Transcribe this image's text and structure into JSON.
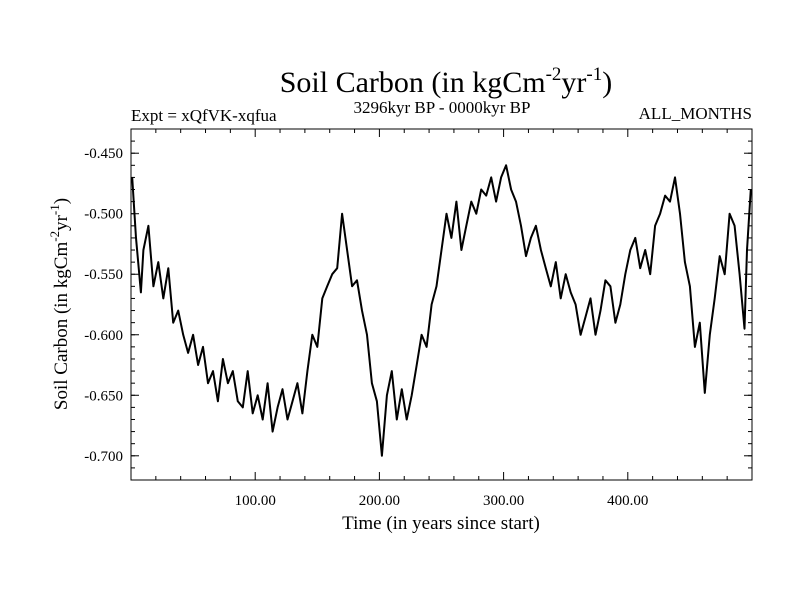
{
  "chart_data": {
    "type": "line",
    "title": "Soil Carbon (in kgCm-2yr-1)",
    "title_parts": {
      "main": "Soil Carbon (in kgCm",
      "exp1": "-2",
      "mid": "yr",
      "exp2": "-1",
      "end": ")"
    },
    "subtitle_left": "Expt = xQfVK-xqfua",
    "subtitle_center": "3296kyr BP - 0000kyr BP",
    "subtitle_right": "ALL_MONTHS",
    "xlabel": "Time (in years since start)",
    "ylabel": "Soil Carbon (in kgCm-2yr-1)",
    "ylabel_parts": {
      "main": "Soil Carbon (in kgCm",
      "exp1": "-2",
      "mid": "yr",
      "exp2": "-1",
      "end": ")"
    },
    "xlim": [
      0,
      500
    ],
    "ylim": [
      -0.72,
      -0.43
    ],
    "x_ticks": [
      100,
      200,
      300,
      400
    ],
    "x_tick_labels": [
      "100.00",
      "200.00",
      "300.00",
      "400.00"
    ],
    "y_ticks": [
      -0.45,
      -0.5,
      -0.55,
      -0.6,
      -0.65,
      -0.7
    ],
    "y_tick_labels": [
      "-0.450",
      "-0.500",
      "-0.550",
      "-0.600",
      "-0.650",
      "-0.700"
    ],
    "grid": false,
    "series": [
      {
        "name": "Soil Carbon",
        "x": [
          1,
          4,
          8,
          10,
          14,
          18,
          22,
          26,
          30,
          34,
          38,
          42,
          46,
          50,
          54,
          58,
          62,
          66,
          70,
          74,
          78,
          82,
          86,
          90,
          94,
          98,
          102,
          106,
          110,
          114,
          118,
          122,
          126,
          130,
          134,
          138,
          142,
          146,
          150,
          154,
          158,
          162,
          166,
          170,
          174,
          178,
          182,
          186,
          190,
          194,
          198,
          202,
          206,
          210,
          214,
          218,
          222,
          226,
          230,
          234,
          238,
          242,
          246,
          250,
          254,
          258,
          262,
          266,
          270,
          274,
          278,
          282,
          286,
          290,
          294,
          298,
          302,
          306,
          310,
          314,
          318,
          322,
          326,
          330,
          334,
          338,
          342,
          346,
          350,
          354,
          358,
          362,
          366,
          370,
          374,
          378,
          382,
          386,
          390,
          394,
          398,
          402,
          406,
          410,
          414,
          418,
          422,
          426,
          430,
          434,
          438,
          442,
          446,
          450,
          454,
          458,
          462,
          466,
          470,
          474,
          478,
          482,
          486,
          490,
          494,
          496,
          499
        ],
        "values": [
          -0.47,
          -0.52,
          -0.565,
          -0.53,
          -0.51,
          -0.56,
          -0.54,
          -0.57,
          -0.545,
          -0.59,
          -0.58,
          -0.6,
          -0.615,
          -0.6,
          -0.625,
          -0.61,
          -0.64,
          -0.63,
          -0.655,
          -0.62,
          -0.64,
          -0.63,
          -0.655,
          -0.66,
          -0.63,
          -0.665,
          -0.65,
          -0.67,
          -0.64,
          -0.68,
          -0.66,
          -0.645,
          -0.67,
          -0.655,
          -0.64,
          -0.665,
          -0.63,
          -0.6,
          -0.61,
          -0.57,
          -0.56,
          -0.55,
          -0.545,
          -0.5,
          -0.53,
          -0.56,
          -0.555,
          -0.58,
          -0.6,
          -0.64,
          -0.655,
          -0.7,
          -0.65,
          -0.63,
          -0.67,
          -0.645,
          -0.67,
          -0.65,
          -0.625,
          -0.6,
          -0.61,
          -0.575,
          -0.56,
          -0.53,
          -0.5,
          -0.52,
          -0.49,
          -0.53,
          -0.51,
          -0.49,
          -0.5,
          -0.48,
          -0.485,
          -0.47,
          -0.49,
          -0.47,
          -0.46,
          -0.48,
          -0.49,
          -0.51,
          -0.535,
          -0.52,
          -0.51,
          -0.53,
          -0.545,
          -0.56,
          -0.54,
          -0.57,
          -0.55,
          -0.565,
          -0.575,
          -0.6,
          -0.585,
          -0.57,
          -0.6,
          -0.58,
          -0.555,
          -0.56,
          -0.59,
          -0.575,
          -0.55,
          -0.53,
          -0.52,
          -0.545,
          -0.53,
          -0.55,
          -0.51,
          -0.5,
          -0.485,
          -0.49,
          -0.47,
          -0.5,
          -0.54,
          -0.56,
          -0.61,
          -0.59,
          -0.648,
          -0.6,
          -0.57,
          -0.535,
          -0.55,
          -0.5,
          -0.51,
          -0.55,
          -0.595,
          -0.53,
          -0.48
        ]
      }
    ]
  }
}
